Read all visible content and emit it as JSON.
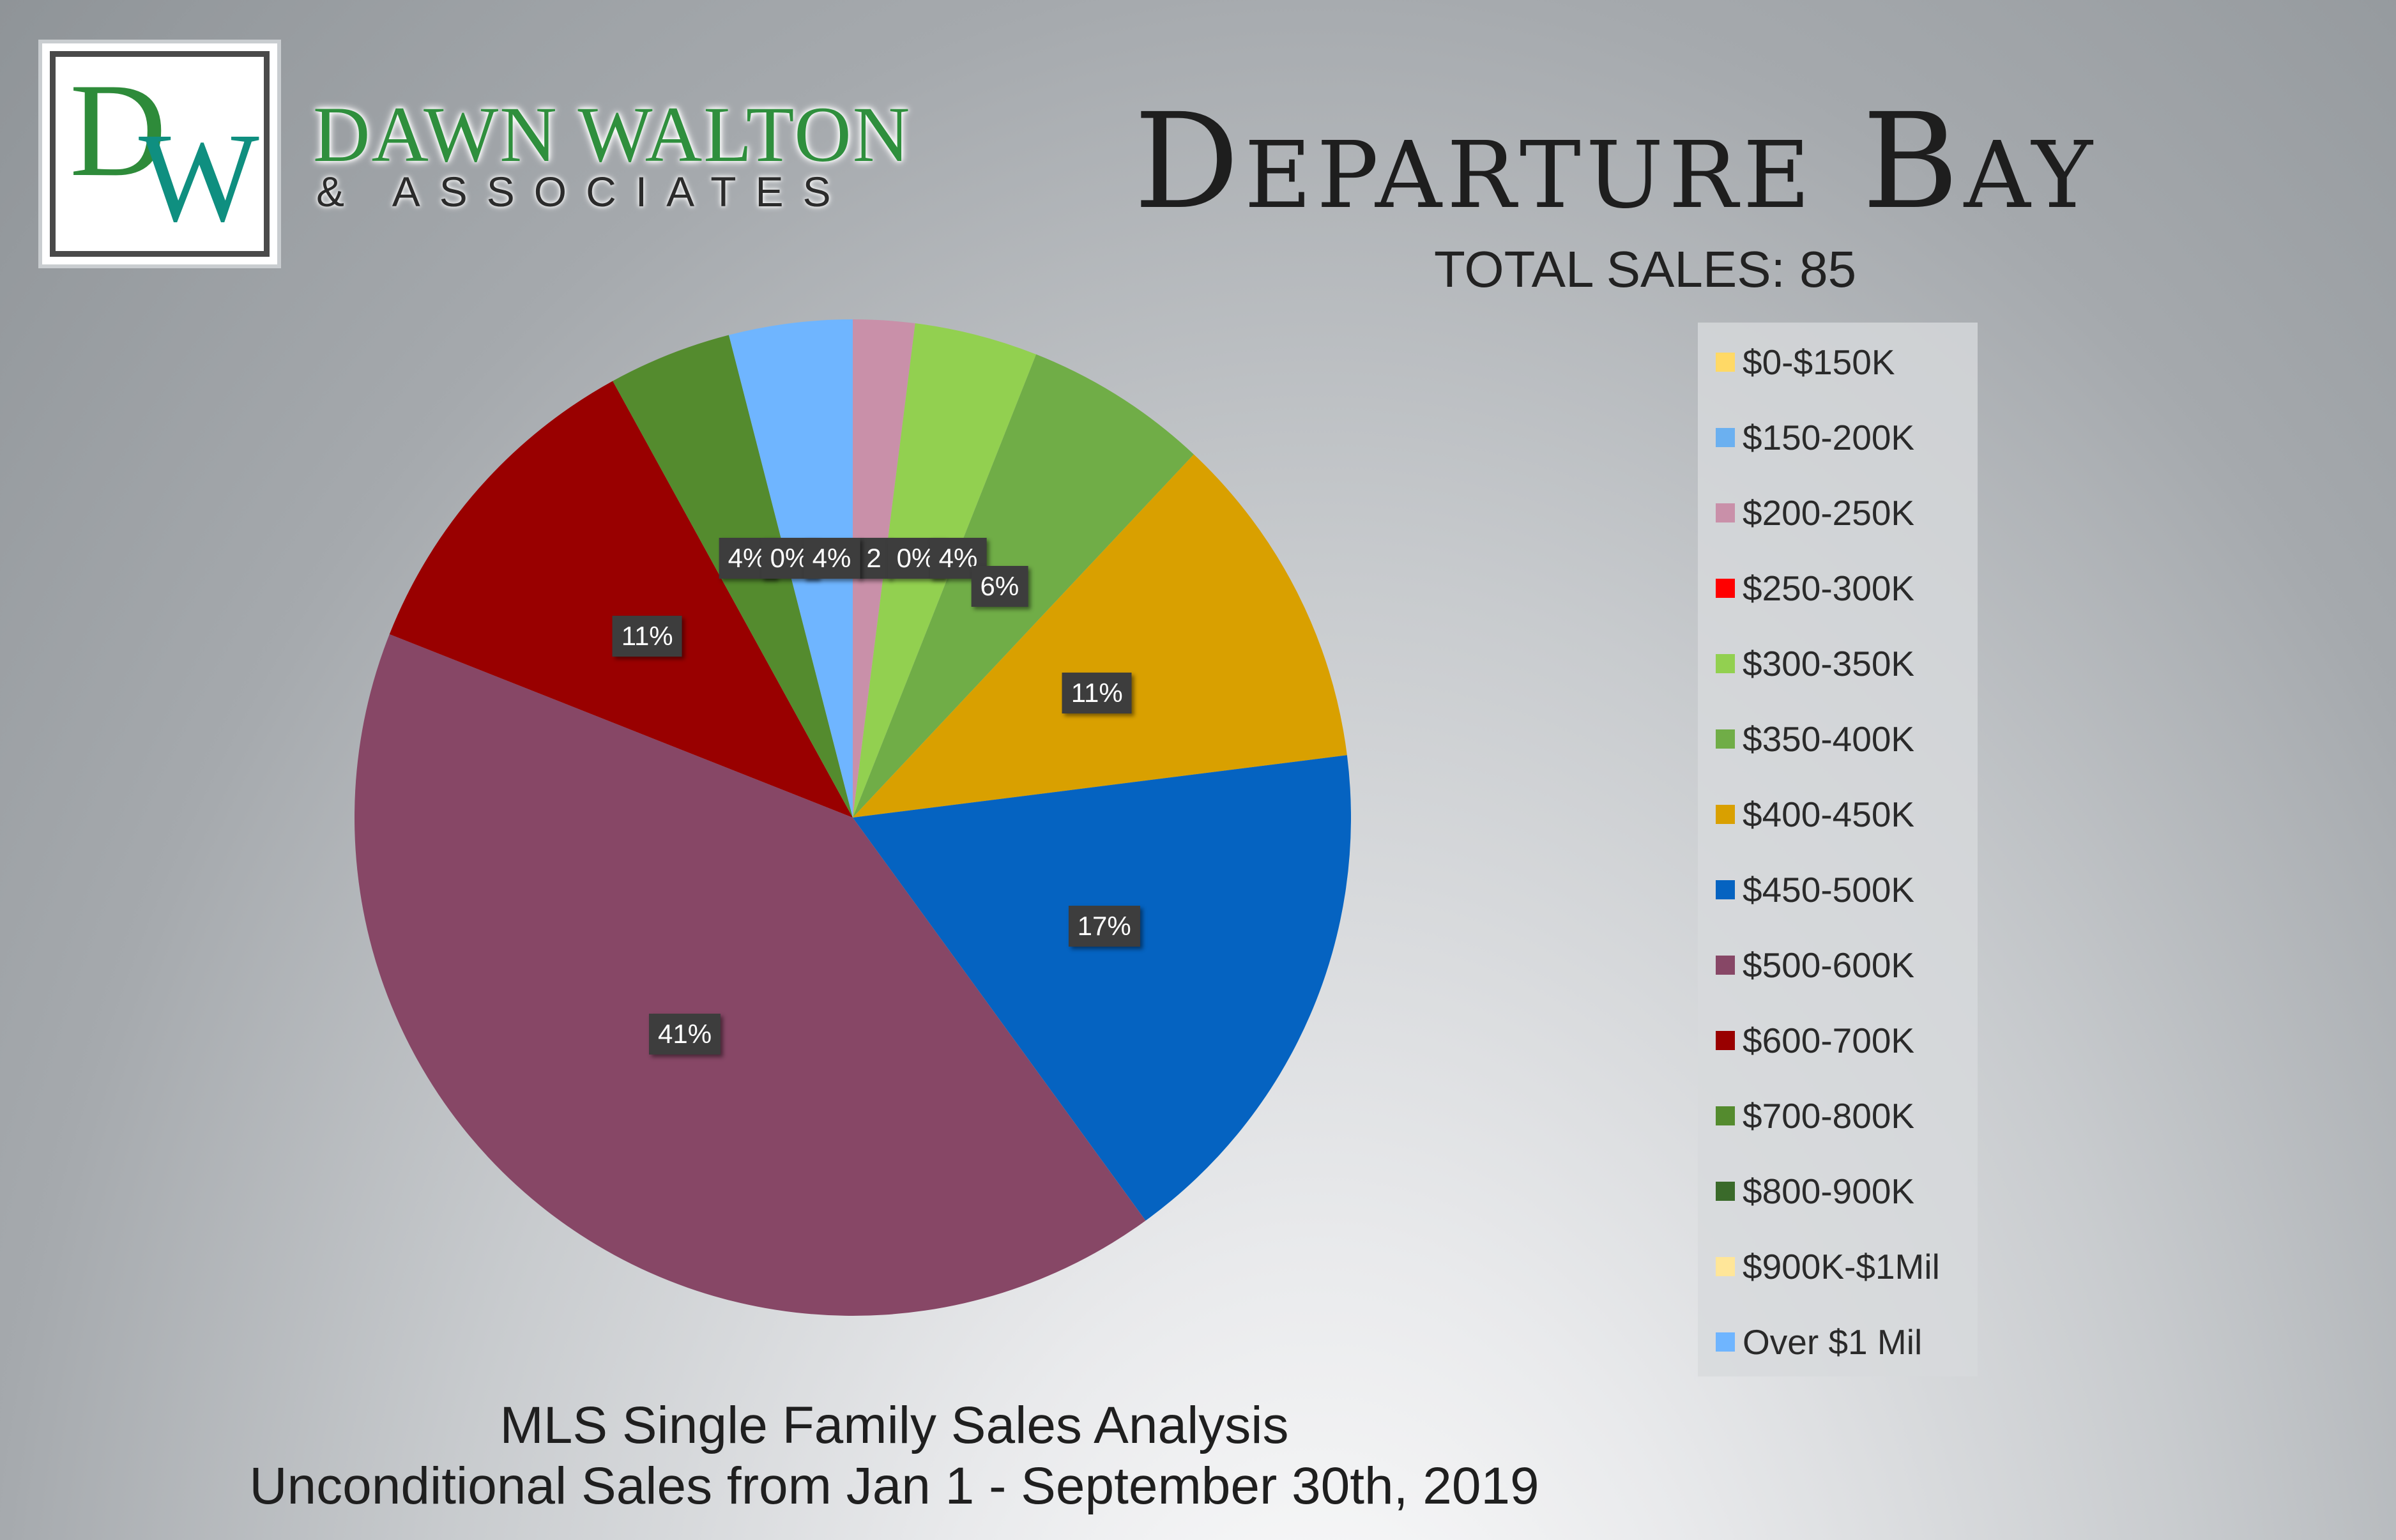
{
  "brand": {
    "monogram_d": "D",
    "monogram_w": "W",
    "name": "DAWN WALTON",
    "sub": "& ASSOCIATES"
  },
  "header": {
    "title": "Departure Bay",
    "total_sales": "TOTAL SALES: 85"
  },
  "footer": {
    "line1": "MLS Single Family Sales Analysis",
    "line2": "Unconditional Sales from Jan 1 - September 30th, 2019"
  },
  "chart_data": {
    "type": "pie",
    "total": 85,
    "start_angle_deg": 0,
    "direction": "clockwise",
    "categories": [
      "$0-$150K",
      "$150-200K",
      "$200-250K",
      "$250-300K",
      "$300-350K",
      "$350-400K",
      "$400-450K",
      "$450-500K",
      "$500-600K",
      "$600-700K",
      "$700-800K",
      "$800-900K",
      "$900K-$1Mil",
      "Over $1 Mil"
    ],
    "values": [
      0,
      0,
      2,
      0,
      4,
      6,
      11,
      17,
      41,
      11,
      4,
      0,
      0,
      4
    ],
    "data_labels": [
      "",
      "",
      "2",
      "0%",
      "4%",
      "6%",
      "11%",
      "17%",
      "41%",
      "11%",
      "4%",
      "0%",
      "",
      "4%"
    ],
    "colors": [
      "#ffd966",
      "#6bb0f0",
      "#c990a9",
      "#ff0000",
      "#92d050",
      "#70ad47",
      "#d9a000",
      "#0563c1",
      "#874766",
      "#990000",
      "#548b2e",
      "#3a6a2a",
      "#ffe699",
      "#6fb5ff"
    ],
    "legend_position": "right"
  }
}
